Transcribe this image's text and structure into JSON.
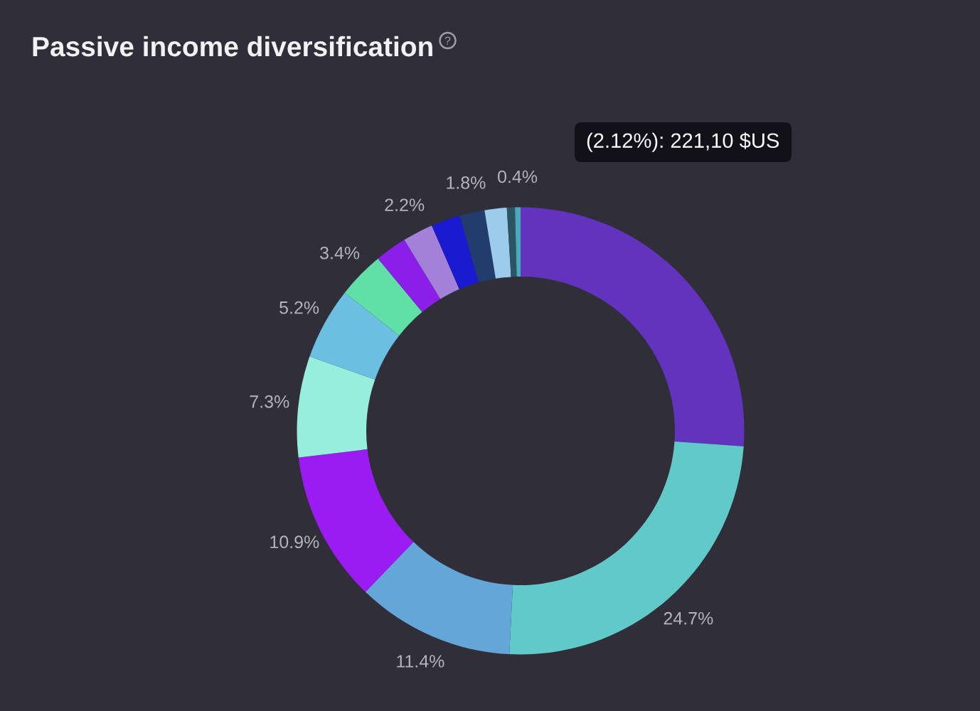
{
  "chart_data": {
    "type": "donut",
    "title": "Passive income diversification",
    "categories": [
      null,
      null,
      null,
      null,
      null,
      null,
      null,
      null,
      null,
      null,
      null,
      null,
      null,
      null
    ],
    "values": [
      26.1,
      24.7,
      11.4,
      10.9,
      7.3,
      5.2,
      3.4,
      2.3,
      2.2,
      2.12,
      1.8,
      1.6,
      0.58,
      0.4
    ],
    "colors": [
      "#6233bd",
      "#62c9c9",
      "#65a6d9",
      "#9a1cf2",
      "#97eedc",
      "#6bbfe0",
      "#60dfa6",
      "#8b1ee8",
      "#a381d8",
      "#1a1ad0",
      "#233c6e",
      "#9ccbec",
      "#2c5563",
      "#4aaabb"
    ],
    "value_labels": [
      null,
      "24.7%",
      "11.4%",
      "10.9%",
      "7.3%",
      "5.2%",
      "3.4%",
      null,
      "2.2%",
      null,
      "1.8%",
      null,
      null,
      "0.4%"
    ],
    "annotations": [
      "(2.12%): 221,10 $US"
    ]
  }
}
